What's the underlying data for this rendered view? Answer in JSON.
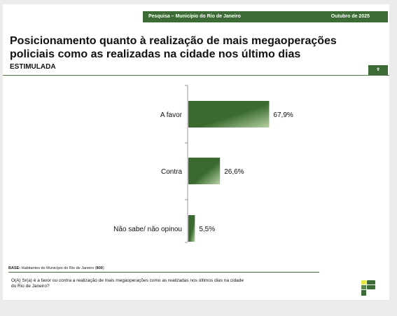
{
  "header": {
    "survey": "Pesquisa – Município do Rio de Janeiro",
    "date": "Outubro de 2025",
    "page_number": "9"
  },
  "title": "Posicionamento quanto à realização de mais megaoperações policiais como as realizadas na cidade nos último dias",
  "subtitle": "ESTIMULADA",
  "footer": {
    "base_prefix": "BASE:",
    "base_text": " Habitantes do Município do Rio de Janeiro (",
    "base_n": "800",
    "base_suffix": ")",
    "question": "O(A) Sr(a) é a favor ou contra a realização de mais megaoperações como as realizadas nos últimos dias na cidade do Rio de Janeiro?"
  },
  "colors": {
    "brand_green": "#3d6b35",
    "bar_dark": "#3a6a30",
    "bar_light": "#b7d2a2",
    "logo_yellow": "#e3e84a"
  },
  "logo_icon": "brand-logo-icon",
  "chart_data": {
    "type": "bar",
    "orientation": "horizontal",
    "categories": [
      "A favor",
      "Contra",
      "Não sabe/ não opinou"
    ],
    "values": [
      67.9,
      26.6,
      5.5
    ],
    "value_labels": [
      "67,9%",
      "26,6%",
      "5,5%"
    ],
    "title": "",
    "xlabel": "",
    "ylabel": "",
    "xlim": [
      0,
      100
    ],
    "grid": false,
    "legend": "none"
  }
}
